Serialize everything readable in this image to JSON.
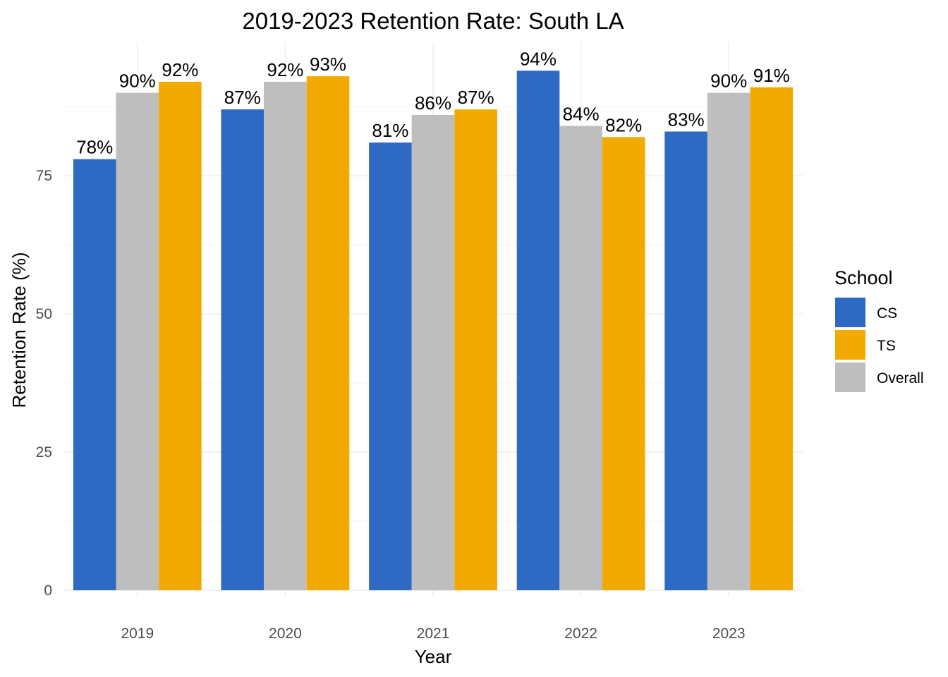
{
  "chart_data": {
    "type": "bar",
    "title": "2019-2023 Retention Rate: South LA",
    "xlabel": "Year",
    "ylabel": "Retention Rate (%)",
    "categories": [
      "2019",
      "2020",
      "2021",
      "2022",
      "2023"
    ],
    "series": [
      {
        "name": "CS",
        "color": "#2e6ac4",
        "values": [
          78,
          87,
          81,
          94,
          83
        ],
        "labels": [
          "78%",
          "87%",
          "81%",
          "94%",
          "83%"
        ]
      },
      {
        "name": "Overall",
        "color": "#bebebe",
        "values": [
          90,
          92,
          86,
          84,
          90
        ],
        "labels": [
          "90%",
          "92%",
          "86%",
          "84%",
          "90%"
        ]
      },
      {
        "name": "TS",
        "color": "#f2aa00",
        "values": [
          92,
          93,
          87,
          82,
          91
        ],
        "labels": [
          "92%",
          "93%",
          "87%",
          "82%",
          "91%"
        ]
      }
    ],
    "yticks": [
      0,
      25,
      50,
      75
    ],
    "ylim": [
      0,
      99
    ],
    "grid": true,
    "legend": {
      "title": "School",
      "position": "right",
      "order": [
        "CS",
        "TS",
        "Overall"
      ]
    }
  }
}
